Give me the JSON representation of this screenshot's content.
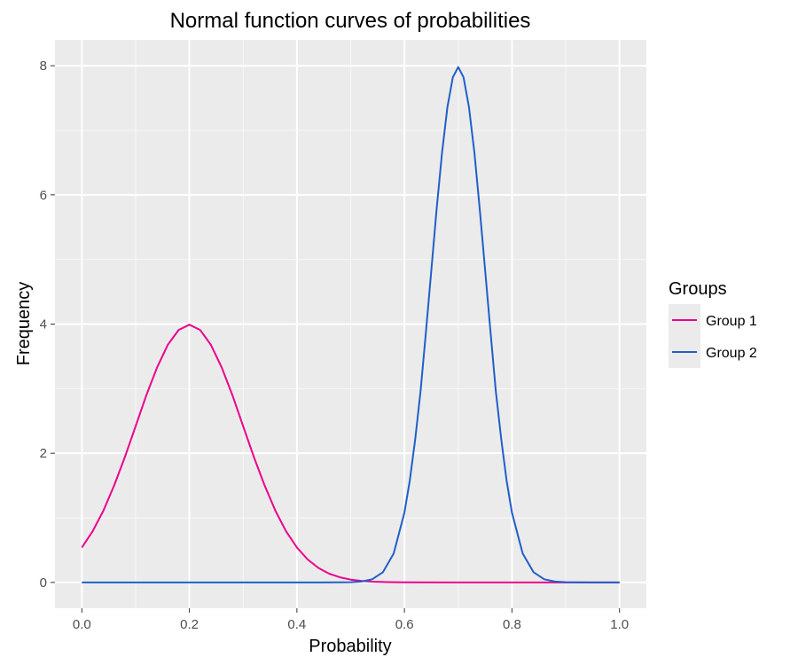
{
  "chart_data": {
    "type": "line",
    "title": "Normal function curves of probabilities",
    "xlabel": "Probability",
    "ylabel": "Frequency",
    "xlim": [
      -0.05,
      1.05
    ],
    "ylim": [
      -0.4,
      8.4
    ],
    "x_ticks": [
      0.0,
      0.2,
      0.4,
      0.6,
      0.8,
      1.0
    ],
    "x_tick_labels": [
      "0.0",
      "0.2",
      "0.4",
      "0.6",
      "0.8",
      "1.0"
    ],
    "y_ticks": [
      0,
      2,
      4,
      6,
      8
    ],
    "y_tick_labels": [
      "0",
      "2",
      "4",
      "6",
      "8"
    ],
    "grid": true,
    "legend": {
      "title": "Groups",
      "position": "right"
    },
    "series": [
      {
        "name": "Group 1",
        "color": "#ec008c",
        "distribution": {
          "mean": 0.2,
          "sd": 0.1
        },
        "x": [
          0.0,
          0.02,
          0.04,
          0.06,
          0.08,
          0.1,
          0.12,
          0.14,
          0.16,
          0.18,
          0.2,
          0.22,
          0.24,
          0.26,
          0.28,
          0.3,
          0.32,
          0.34,
          0.36,
          0.38,
          0.4,
          0.42,
          0.44,
          0.46,
          0.48,
          0.5,
          0.52,
          0.54,
          0.56,
          0.58,
          0.6,
          0.7,
          0.8,
          0.9,
          1.0
        ],
        "y": [
          0.54,
          0.79,
          1.11,
          1.5,
          1.94,
          2.42,
          2.9,
          3.33,
          3.68,
          3.91,
          3.99,
          3.91,
          3.68,
          3.33,
          2.9,
          2.42,
          1.94,
          1.5,
          1.11,
          0.79,
          0.54,
          0.355,
          0.224,
          0.136,
          0.079,
          0.044,
          0.024,
          0.012,
          0.006,
          0.003,
          0.001,
          0.0,
          0.0,
          0.0,
          0.0
        ]
      },
      {
        "name": "Group 2",
        "color": "#1f5fc8",
        "distribution": {
          "mean": 0.7,
          "sd": 0.05
        },
        "x": [
          0.0,
          0.1,
          0.2,
          0.3,
          0.4,
          0.45,
          0.5,
          0.52,
          0.54,
          0.56,
          0.58,
          0.6,
          0.61,
          0.62,
          0.63,
          0.64,
          0.65,
          0.66,
          0.67,
          0.68,
          0.69,
          0.7,
          0.71,
          0.72,
          0.73,
          0.74,
          0.75,
          0.76,
          0.77,
          0.78,
          0.79,
          0.8,
          0.82,
          0.84,
          0.86,
          0.88,
          0.9,
          0.95,
          1.0
        ],
        "y": [
          0.0,
          0.0,
          0.0,
          0.0,
          0.0,
          0.0,
          0.003,
          0.013,
          0.049,
          0.159,
          0.448,
          1.08,
          1.58,
          2.22,
          2.96,
          3.88,
          4.84,
          5.79,
          6.66,
          7.36,
          7.82,
          7.98,
          7.82,
          7.36,
          6.66,
          5.79,
          4.84,
          3.88,
          2.96,
          2.22,
          1.58,
          1.08,
          0.448,
          0.159,
          0.049,
          0.013,
          0.003,
          0.0,
          0.0
        ]
      }
    ]
  }
}
